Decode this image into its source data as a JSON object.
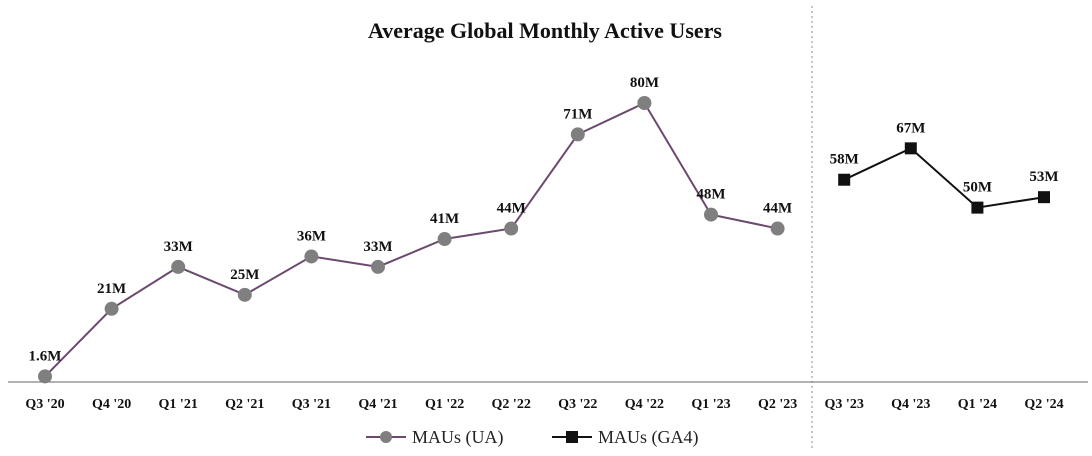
{
  "chart_data": {
    "type": "line",
    "title": "Average Global Monthly Active Users",
    "xlabel": "",
    "ylabel": "",
    "ylim": [
      0,
      80
    ],
    "grid": false,
    "legend_position": "bottom",
    "categories": [
      "Q3 '20",
      "Q4 '20",
      "Q1 '21",
      "Q2 '21",
      "Q3 '21",
      "Q4 '21",
      "Q1 '22",
      "Q2 '22",
      "Q3 '22",
      "Q4 '22",
      "Q1 '23",
      "Q2 '23",
      "Q3 '23",
      "Q4 '23",
      "Q1 '24",
      "Q2 '24"
    ],
    "series": [
      {
        "name": "MAUs (UA)",
        "color": "#6b4a6e",
        "marker": "circle",
        "marker_color": "#7f7f7f",
        "x": [
          "Q3 '20",
          "Q4 '20",
          "Q1 '21",
          "Q2 '21",
          "Q3 '21",
          "Q4 '21",
          "Q1 '22",
          "Q2 '22",
          "Q3 '22",
          "Q4 '22",
          "Q1 '23",
          "Q2 '23"
        ],
        "values": [
          1.6,
          21,
          33,
          25,
          36,
          33,
          41,
          44,
          71,
          80,
          48,
          44
        ],
        "labels": [
          "1.6M",
          "21M",
          "33M",
          "25M",
          "36M",
          "33M",
          "41M",
          "44M",
          "71M",
          "80M",
          "48M",
          "44M"
        ]
      },
      {
        "name": "MAUs (GA4)",
        "color": "#111111",
        "marker": "square",
        "marker_color": "#111111",
        "x": [
          "Q3 '23",
          "Q4 '23",
          "Q1 '24",
          "Q2 '24"
        ],
        "values": [
          58,
          67,
          50,
          53
        ],
        "labels": [
          "58M",
          "67M",
          "50M",
          "53M"
        ]
      }
    ],
    "annotations": [
      {
        "type": "vertical-divider",
        "between": [
          "Q2 '23",
          "Q3 '23"
        ],
        "style": "dotted"
      }
    ]
  }
}
